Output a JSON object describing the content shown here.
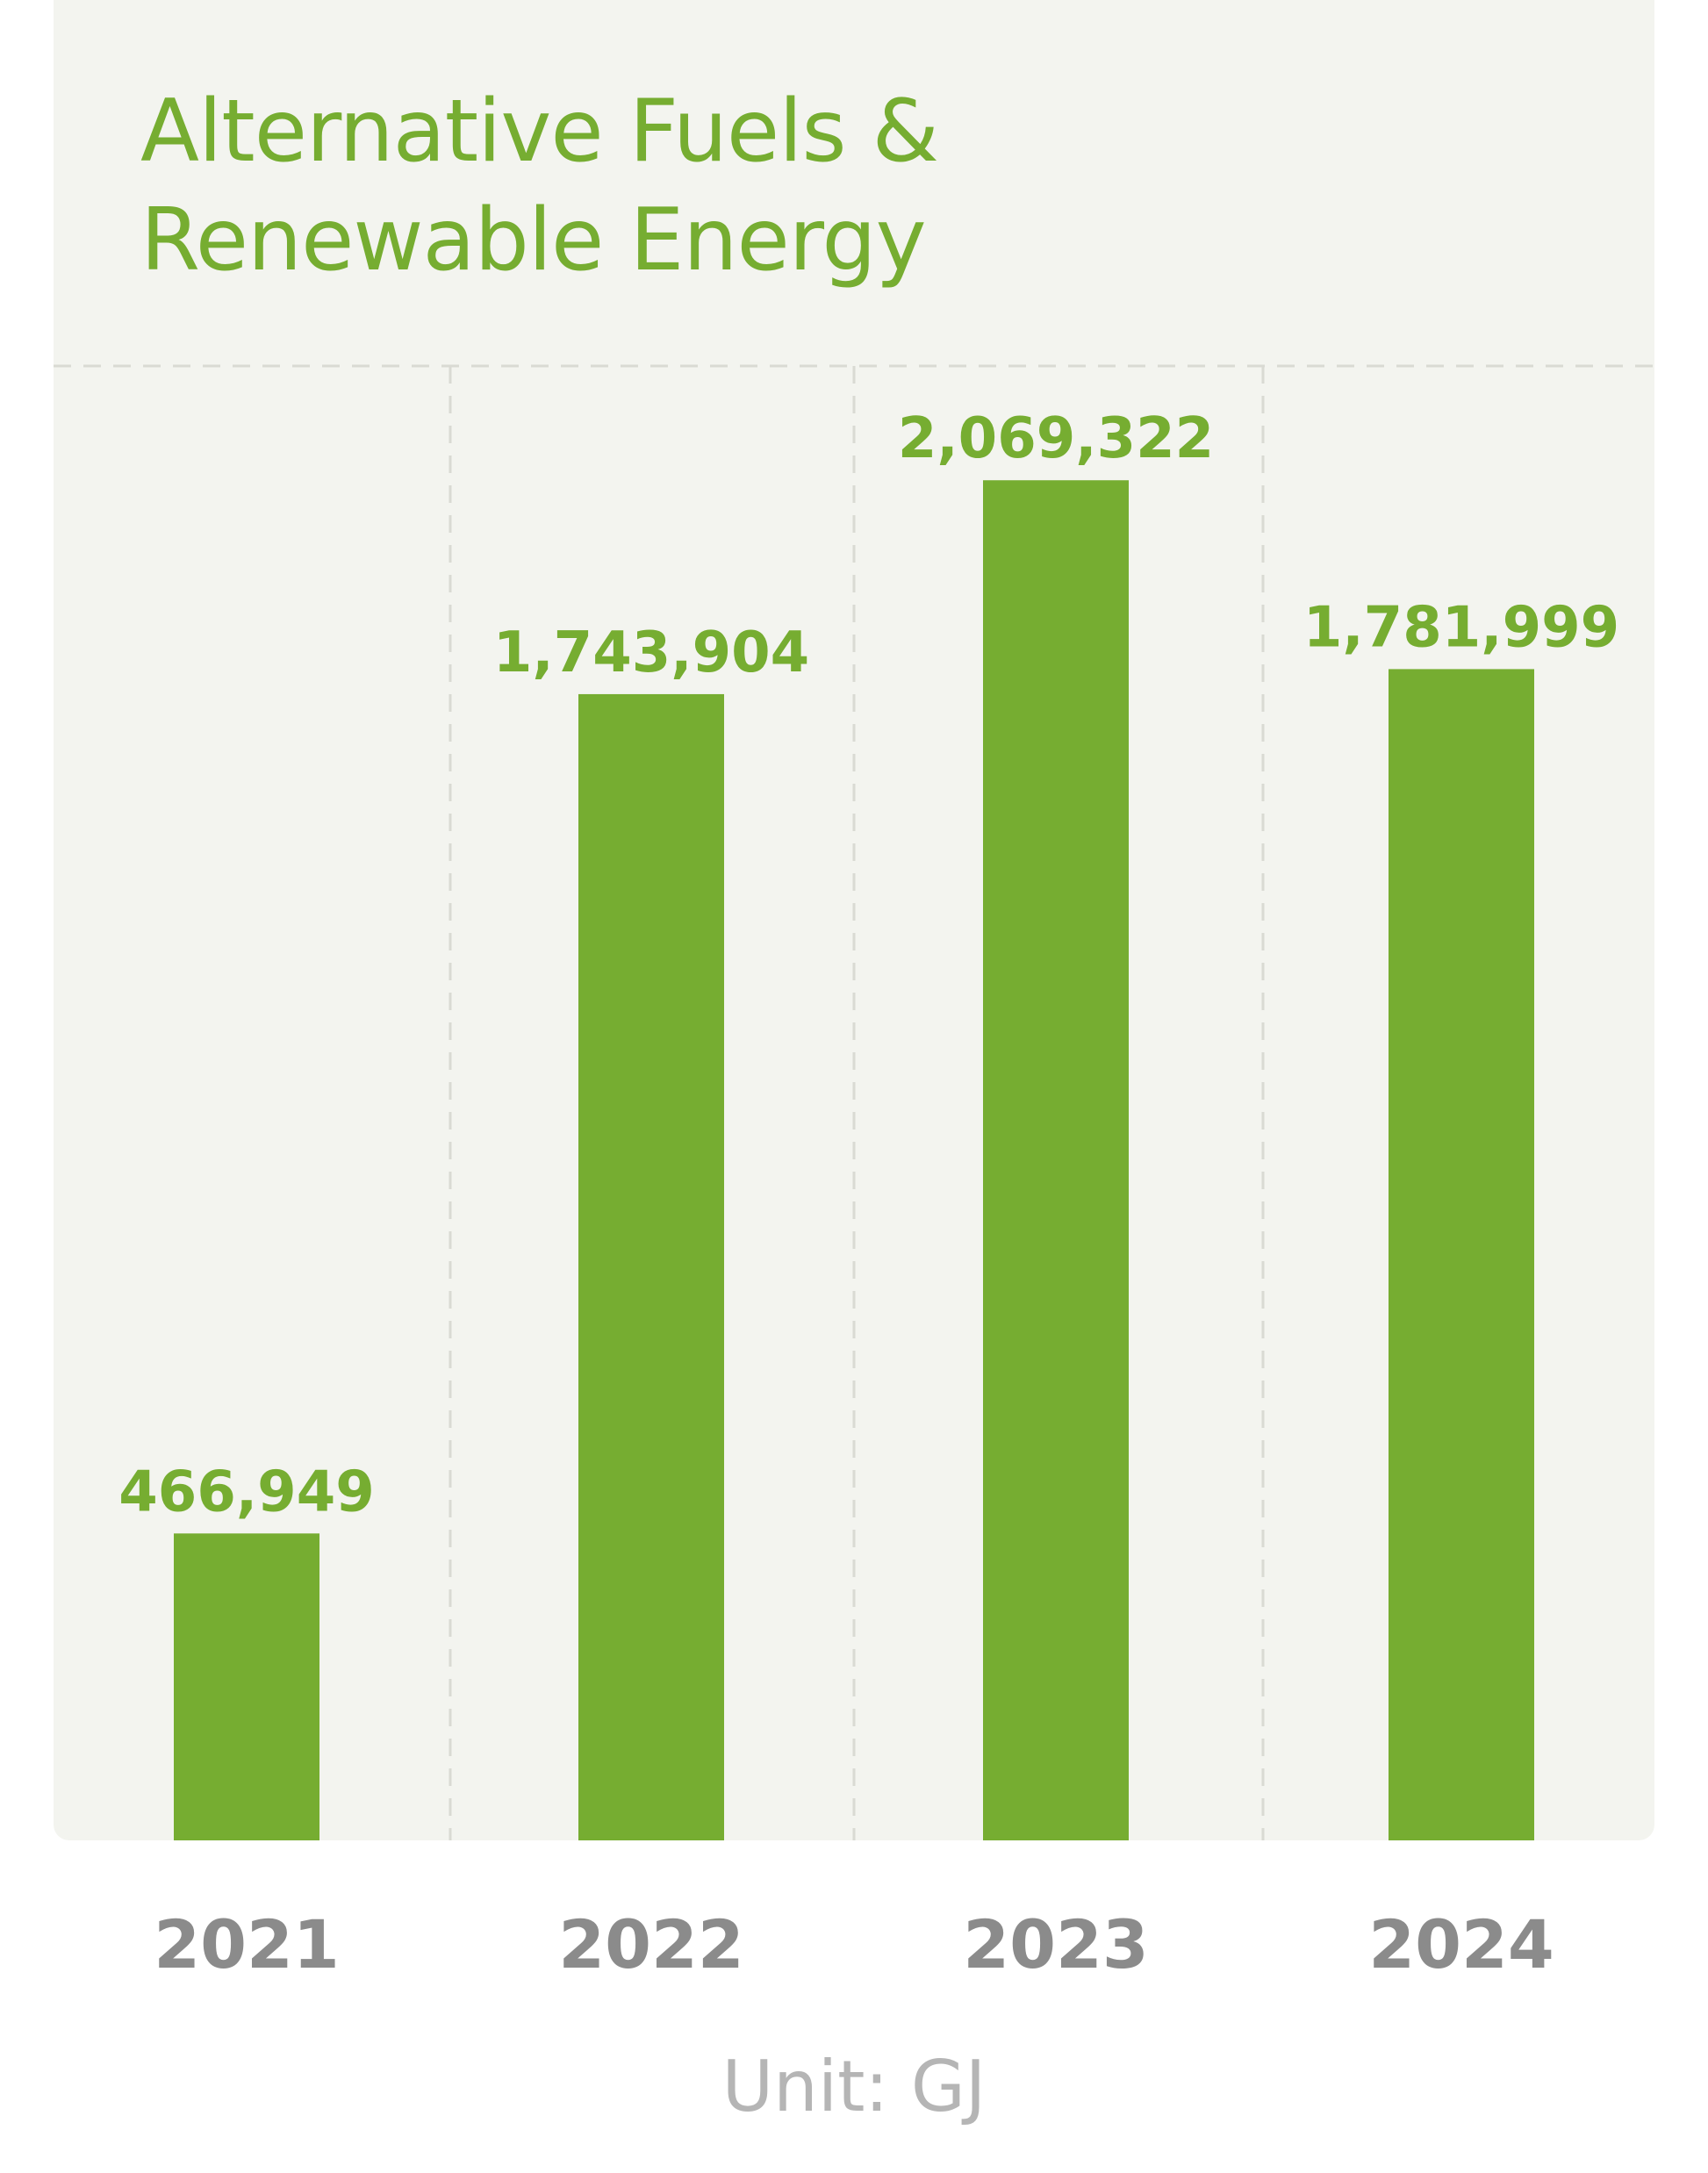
{
  "chart_data": {
    "type": "bar",
    "title": "Alternative Fuels & Renewable Energy",
    "title_lines": [
      "Alternative Fuels &",
      "Renewable Energy"
    ],
    "categories": [
      "2021",
      "2022",
      "2023",
      "2024"
    ],
    "values": [
      466949,
      1743904,
      2069322,
      1781999
    ],
    "value_labels": [
      "466,949",
      "1,743,904",
      "2,069,322",
      "1,781,999"
    ],
    "unit_label": "Unit: GJ",
    "ylim": [
      0,
      2800000
    ],
    "grid": "dashed vertical separators between categories",
    "legend": "none",
    "colors": {
      "bar": "#76ad31",
      "title": "#76ad31",
      "value_label": "#76ad31",
      "tick_label": "#8b8b8b",
      "unit_label": "#b5b5b5",
      "panel_background": "#f3f4ef",
      "gridline": "#d9dad3"
    }
  }
}
